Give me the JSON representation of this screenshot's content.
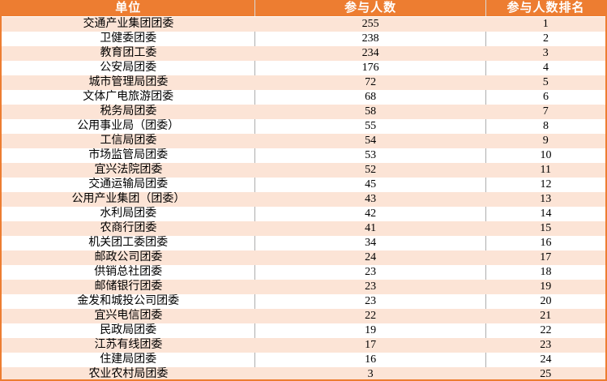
{
  "table": {
    "headers": [
      "单位",
      "参与人数",
      "参与人数排名"
    ],
    "rows": [
      [
        "交通产业集团团委",
        255,
        1
      ],
      [
        "卫健委团委",
        238,
        2
      ],
      [
        "教育团工委",
        234,
        3
      ],
      [
        "公安局团委",
        176,
        4
      ],
      [
        "城市管理局团委",
        72,
        5
      ],
      [
        "文体广电旅游团委",
        68,
        6
      ],
      [
        "税务局团委",
        58,
        7
      ],
      [
        "公用事业局（团委）",
        55,
        8
      ],
      [
        "工信局团委",
        54,
        9
      ],
      [
        "市场监管局团委",
        53,
        10
      ],
      [
        "宜兴法院团委",
        52,
        11
      ],
      [
        "交通运输局团委",
        45,
        12
      ],
      [
        "公用产业集团（团委）",
        43,
        13
      ],
      [
        "水利局团委",
        42,
        14
      ],
      [
        "农商行团委",
        41,
        15
      ],
      [
        "机关团工委团委",
        34,
        16
      ],
      [
        "邮政公司团委",
        24,
        17
      ],
      [
        "供销总社团委",
        23,
        18
      ],
      [
        "邮储银行团委",
        23,
        19
      ],
      [
        "金发和城投公司团委",
        23,
        20
      ],
      [
        "宜兴电信团委",
        22,
        21
      ],
      [
        "民政局团委",
        19,
        22
      ],
      [
        "江苏有线团委",
        17,
        23
      ],
      [
        "住建局团委",
        16,
        24
      ],
      [
        "农业农村局团委",
        3,
        25
      ]
    ]
  },
  "colors": {
    "header_bg": "#ED7D31",
    "band_bg": "#FCE4D6",
    "white_bg": "#FFFFFF",
    "outer_border": "#ED7D31",
    "grid_gray": "#ADADAD",
    "header_sep": "#D9D9D9",
    "header_text": "#FFFFFF",
    "body_text": "#000000"
  }
}
